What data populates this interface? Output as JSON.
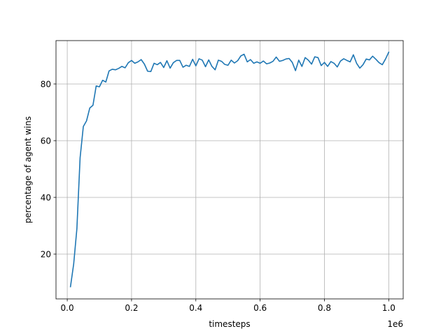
{
  "chart_data": {
    "type": "line",
    "title": "",
    "xlabel": "timesteps",
    "ylabel": "percentage of agent wins",
    "x_offset_label": "1e6",
    "xlim": [
      -0.035,
      1.045
    ],
    "ylim": [
      4.2,
      95.3
    ],
    "x_ticks": [
      0.0,
      0.2,
      0.4,
      0.6,
      0.8,
      1.0
    ],
    "x_tick_labels": [
      "0.0",
      "0.2",
      "0.4",
      "0.6",
      "0.8",
      "1.0"
    ],
    "y_ticks": [
      20,
      40,
      60,
      80
    ],
    "y_tick_labels": [
      "20",
      "40",
      "60",
      "80"
    ],
    "grid": true,
    "series": [
      {
        "color": "#1f77b4",
        "x": [
          0.01,
          0.02,
          0.03,
          0.04,
          0.05,
          0.06,
          0.07,
          0.08,
          0.09,
          0.1,
          0.11,
          0.12,
          0.13,
          0.14,
          0.15,
          0.16,
          0.17,
          0.18,
          0.19,
          0.2,
          0.21,
          0.22,
          0.23,
          0.24,
          0.25,
          0.26,
          0.27,
          0.28,
          0.29,
          0.3,
          0.31,
          0.32,
          0.33,
          0.34,
          0.35,
          0.36,
          0.37,
          0.38,
          0.39,
          0.4,
          0.41,
          0.42,
          0.43,
          0.44,
          0.45,
          0.46,
          0.47,
          0.48,
          0.49,
          0.5,
          0.51,
          0.52,
          0.53,
          0.54,
          0.55,
          0.56,
          0.57,
          0.58,
          0.59,
          0.6,
          0.61,
          0.62,
          0.63,
          0.64,
          0.65,
          0.66,
          0.67,
          0.68,
          0.69,
          0.7,
          0.71,
          0.72,
          0.73,
          0.74,
          0.75,
          0.76,
          0.77,
          0.78,
          0.79,
          0.8,
          0.81,
          0.82,
          0.83,
          0.84,
          0.85,
          0.86,
          0.87,
          0.88,
          0.89,
          0.9,
          0.91,
          0.92,
          0.93,
          0.94,
          0.95,
          0.96,
          0.97,
          0.98,
          0.99,
          1.0
        ],
        "y": [
          8.5,
          16.5,
          29,
          54,
          65,
          67,
          71.5,
          72.5,
          79.3,
          79,
          81.3,
          80.7,
          84.6,
          85.2,
          85,
          85.5,
          86.2,
          85.7,
          87.5,
          88.3,
          87.3,
          87.8,
          88.6,
          87,
          84.5,
          84.4,
          87.3,
          86.8,
          87.6,
          85.8,
          88.2,
          85.6,
          87.5,
          88.3,
          88.3,
          85.9,
          86.6,
          86.2,
          88.7,
          86.4,
          88.9,
          88.4,
          86.1,
          88.5,
          86.2,
          85,
          88.4,
          88,
          86.9,
          86.6,
          88.4,
          87.4,
          88.2,
          89.9,
          90.5,
          87.8,
          88.6,
          87.3,
          87.8,
          87.3,
          88.1,
          87.1,
          87.4,
          88,
          89.5,
          88,
          88.3,
          88.8,
          89,
          87.6,
          84.7,
          88.4,
          86.2,
          89.3,
          88.4,
          87,
          89.6,
          89.3,
          86.5,
          87.6,
          86.2,
          87.9,
          87.3,
          86,
          88.1,
          88.9,
          88.3,
          87.8,
          90.3,
          87.3,
          85.6,
          86.8,
          88.8,
          88.5,
          89.8,
          88.7,
          87.5,
          86.8,
          88.8,
          91.2
        ]
      }
    ]
  }
}
